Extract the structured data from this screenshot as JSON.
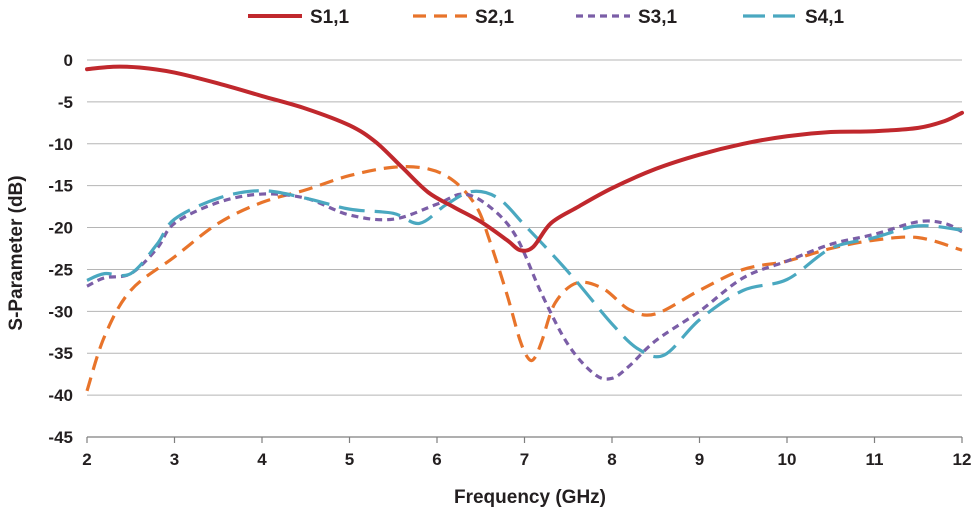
{
  "chart_data": {
    "type": "line",
    "title": "",
    "xlabel": "Frequency (GHz)",
    "ylabel": "S-Parameter (dB)",
    "xlim": [
      2,
      12
    ],
    "ylim": [
      -45,
      0
    ],
    "xticks": [
      2,
      3,
      4,
      5,
      6,
      7,
      8,
      9,
      10,
      11,
      12
    ],
    "yticks": [
      0,
      -5,
      -10,
      -15,
      -20,
      -25,
      -30,
      -35,
      -40,
      -45
    ],
    "grid": "horizontal",
    "legend_position": "top",
    "series": [
      {
        "name": "S1,1",
        "color": "#c0282d",
        "dash": "solid",
        "x": [
          2,
          2.3,
          2.6,
          3,
          3.5,
          4,
          4.5,
          5,
          5.3,
          5.6,
          5.9,
          6.2,
          6.5,
          6.8,
          6.95,
          7.1,
          7.3,
          7.6,
          8,
          8.5,
          9,
          9.5,
          10,
          10.5,
          11,
          11.5,
          11.8,
          12
        ],
        "y": [
          -1.1,
          -0.8,
          -0.9,
          -1.5,
          -2.8,
          -4.3,
          -5.8,
          -7.8,
          -9.8,
          -12.8,
          -15.8,
          -17.6,
          -19.3,
          -21.5,
          -22.7,
          -22.3,
          -19.5,
          -17.6,
          -15.3,
          -13,
          -11.3,
          -10,
          -9.1,
          -8.6,
          -8.5,
          -8.1,
          -7.3,
          -6.3
        ]
      },
      {
        "name": "S2,1",
        "color": "#e8742b",
        "dash": "dashed",
        "x": [
          2,
          2.2,
          2.5,
          3,
          3.5,
          4,
          4.5,
          5,
          5.5,
          5.9,
          6.2,
          6.45,
          6.6,
          6.8,
          6.95,
          7.05,
          7.12,
          7.2,
          7.35,
          7.6,
          7.9,
          8.2,
          8.5,
          9,
          9.5,
          10,
          10.5,
          11,
          11.5,
          12
        ],
        "y": [
          -39.5,
          -33,
          -27.5,
          -23.5,
          -19.5,
          -17,
          -15.5,
          -13.8,
          -12.8,
          -13,
          -14.5,
          -17.5,
          -21.5,
          -28,
          -33.5,
          -35.7,
          -35.5,
          -33.5,
          -29,
          -26.6,
          -27.3,
          -29.8,
          -30.3,
          -27.5,
          -25,
          -24,
          -22.5,
          -21.5,
          -21.2,
          -22.7
        ]
      },
      {
        "name": "S3,1",
        "color": "#7b5ea7",
        "dash": "dotted",
        "x": [
          2,
          2.2,
          2.5,
          2.8,
          3,
          3.5,
          4,
          4.5,
          5,
          5.5,
          6,
          6.3,
          6.6,
          6.9,
          7.2,
          7.5,
          7.8,
          8,
          8.2,
          8.5,
          9,
          9.5,
          10,
          10.5,
          11,
          11.5,
          11.8,
          12
        ],
        "y": [
          -27,
          -26,
          -25.5,
          -22.5,
          -19.5,
          -17,
          -16,
          -16.5,
          -18.5,
          -19,
          -17.2,
          -16,
          -17.5,
          -21,
          -28,
          -34,
          -37.5,
          -38,
          -36.5,
          -33.5,
          -30,
          -26,
          -24,
          -22,
          -20.8,
          -19.3,
          -19.5,
          -20.5
        ]
      },
      {
        "name": "S4,1",
        "color": "#4aa8c0",
        "dash": "long-dash",
        "x": [
          2,
          2.2,
          2.5,
          2.8,
          3,
          3.5,
          4,
          4.5,
          5,
          5.5,
          5.8,
          6.1,
          6.4,
          6.7,
          7,
          7.3,
          7.6,
          8,
          8.3,
          8.6,
          9,
          9.5,
          10,
          10.5,
          11,
          11.5,
          12
        ],
        "y": [
          -26.3,
          -25.5,
          -25.5,
          -22,
          -19,
          -16.5,
          -15.6,
          -16.5,
          -17.8,
          -18.3,
          -19.5,
          -17.3,
          -15.7,
          -16.5,
          -19.7,
          -23,
          -26.5,
          -31.5,
          -34.5,
          -35.2,
          -31,
          -27.5,
          -26.2,
          -22.5,
          -21.2,
          -19.8,
          -20.3
        ]
      }
    ]
  }
}
